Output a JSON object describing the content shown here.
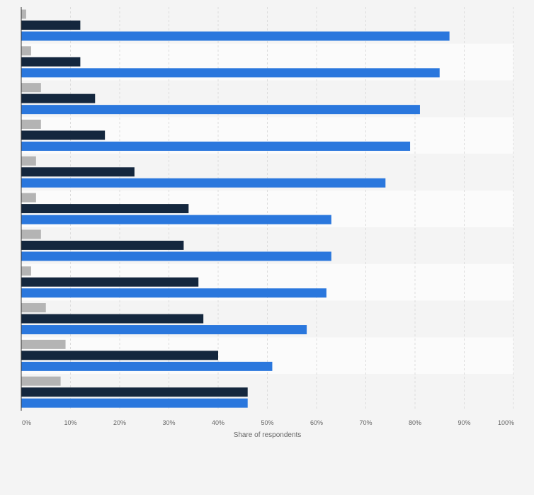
{
  "chart_data": {
    "type": "bar",
    "orientation": "horizontal",
    "title": "",
    "xlabel": "Share of respondents",
    "ylabel": "",
    "xlim": [
      0,
      100
    ],
    "x_ticks": [
      "0%",
      "10%",
      "20%",
      "30%",
      "40%",
      "50%",
      "60%",
      "70%",
      "80%",
      "90%",
      "100%"
    ],
    "grid": true,
    "legend": "none",
    "categories": [
      "",
      "",
      "",
      "",
      "",
      "",
      "",
      "",
      "",
      "",
      ""
    ],
    "series": [
      {
        "color": "#b4b4b4",
        "values": [
          1,
          2,
          4,
          4,
          3,
          3,
          4,
          2,
          5,
          9,
          8
        ]
      },
      {
        "color": "#14273e",
        "values": [
          12,
          12,
          15,
          17,
          23,
          34,
          33,
          36,
          37,
          40,
          46
        ]
      },
      {
        "color": "#2a77dd",
        "values": [
          87,
          85,
          81,
          79,
          74,
          63,
          63,
          62,
          58,
          51,
          46
        ]
      }
    ]
  }
}
